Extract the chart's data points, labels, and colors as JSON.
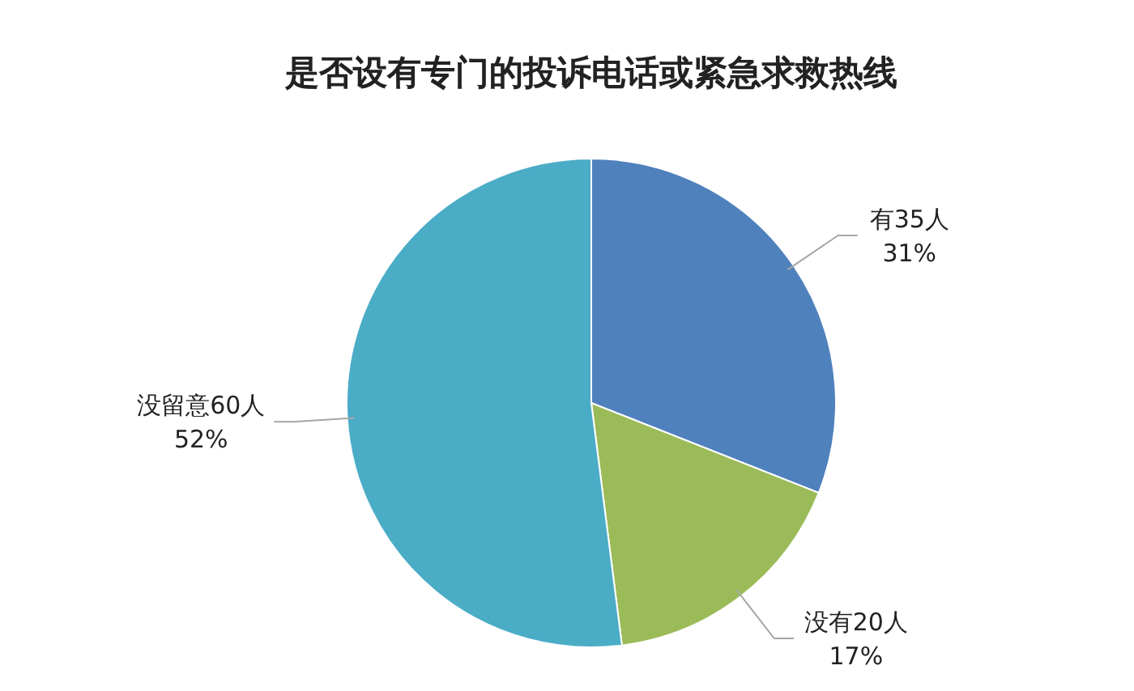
{
  "chart_data": {
    "type": "pie",
    "title": "是否设有专门的投诉电话或紧急求救热线",
    "categories": [
      "有35人",
      "没有20人",
      "没留意60人"
    ],
    "values": [
      31,
      17,
      52
    ],
    "value_labels": [
      "31%",
      "17%",
      "52%"
    ],
    "colors": [
      "#4f81bd",
      "#9bbb59",
      "#4bacc6"
    ]
  }
}
